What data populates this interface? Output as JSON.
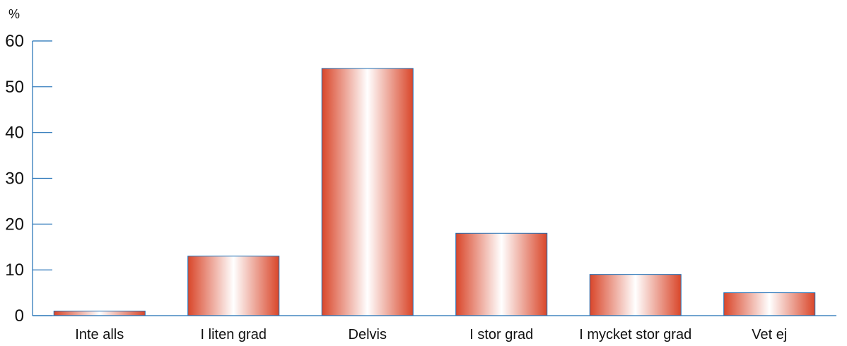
{
  "chart_data": {
    "type": "bar",
    "unit_label": "%",
    "categories": [
      "Inte alls",
      "I liten grad",
      "Delvis",
      "I stor grad",
      "I mycket stor grad",
      "Vet ej"
    ],
    "values": [
      1,
      13,
      54,
      18,
      9,
      5
    ],
    "ylim": [
      0,
      60
    ],
    "yticks": [
      0,
      10,
      20,
      30,
      40,
      50,
      60
    ],
    "grid": false,
    "legend": "none",
    "colors": {
      "bar_edge": "#d9462a",
      "bar_center": "#ffffff",
      "bar_border": "#1f6fb5",
      "axis": "#1f6fb5"
    }
  }
}
